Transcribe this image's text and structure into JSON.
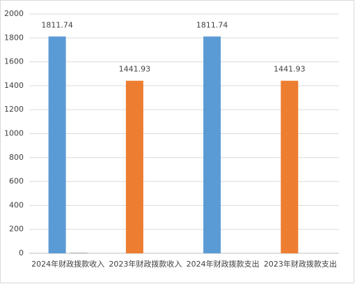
{
  "chart_data": {
    "type": "bar",
    "categories": [
      "2024年财政拨款收入",
      "2023年财政拨款收入",
      "2024年财政拨款支出",
      "2023年财政拨款支出"
    ],
    "series": [
      {
        "colors": [
          "#5b9bd5",
          "#ed7d31",
          "#5b9bd5",
          "#ed7d31"
        ],
        "values": [
          1811.74,
          1441.93,
          1811.74,
          1441.93
        ],
        "labels_shown": true
      },
      {
        "color": "#a5a5a5",
        "values": [
          5,
          null,
          null,
          null
        ]
      }
    ],
    "ylim": [
      0,
      2000
    ],
    "yticks": [
      0,
      200,
      400,
      600,
      800,
      1000,
      1200,
      1400,
      1600,
      1800,
      2000
    ],
    "grid": true
  }
}
